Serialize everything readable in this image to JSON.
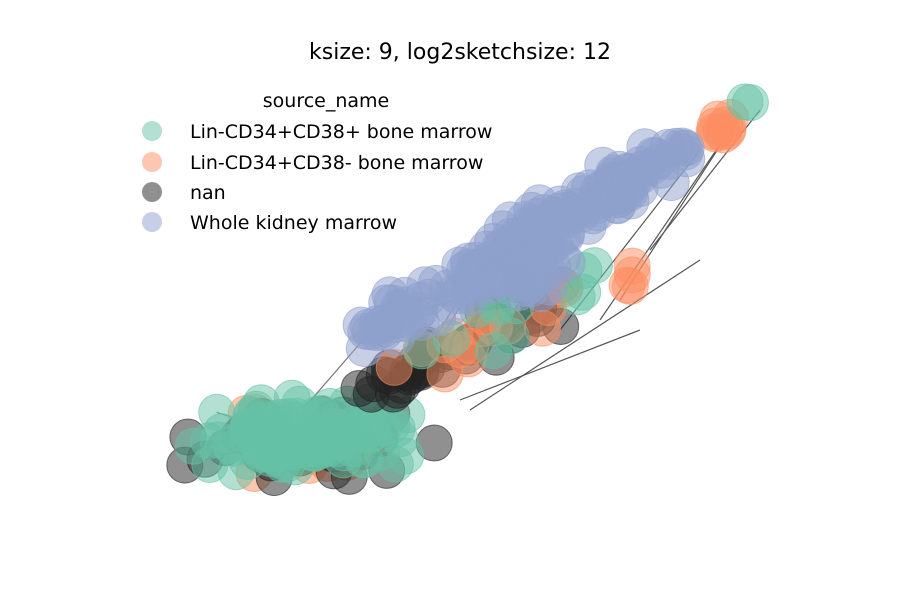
{
  "chart_data": {
    "type": "network",
    "title": "ksize: 9, log2sketchsize: 12",
    "legend": {
      "title": "source_name",
      "placement": "upper-left",
      "entries": [
        {
          "label": "Lin-CD34+CD38+ bone marrow",
          "color": "#66c2a5"
        },
        {
          "label": "Lin-CD34+CD38- bone marrow",
          "color": "#fc8d62"
        },
        {
          "label": "nan",
          "color": "#222222"
        },
        {
          "label": "Whole kidney marrow",
          "color": "#8da0cb"
        }
      ]
    },
    "node_alpha": 0.5,
    "edge_color": "#555555",
    "axes_visible": false,
    "grid": false
  }
}
